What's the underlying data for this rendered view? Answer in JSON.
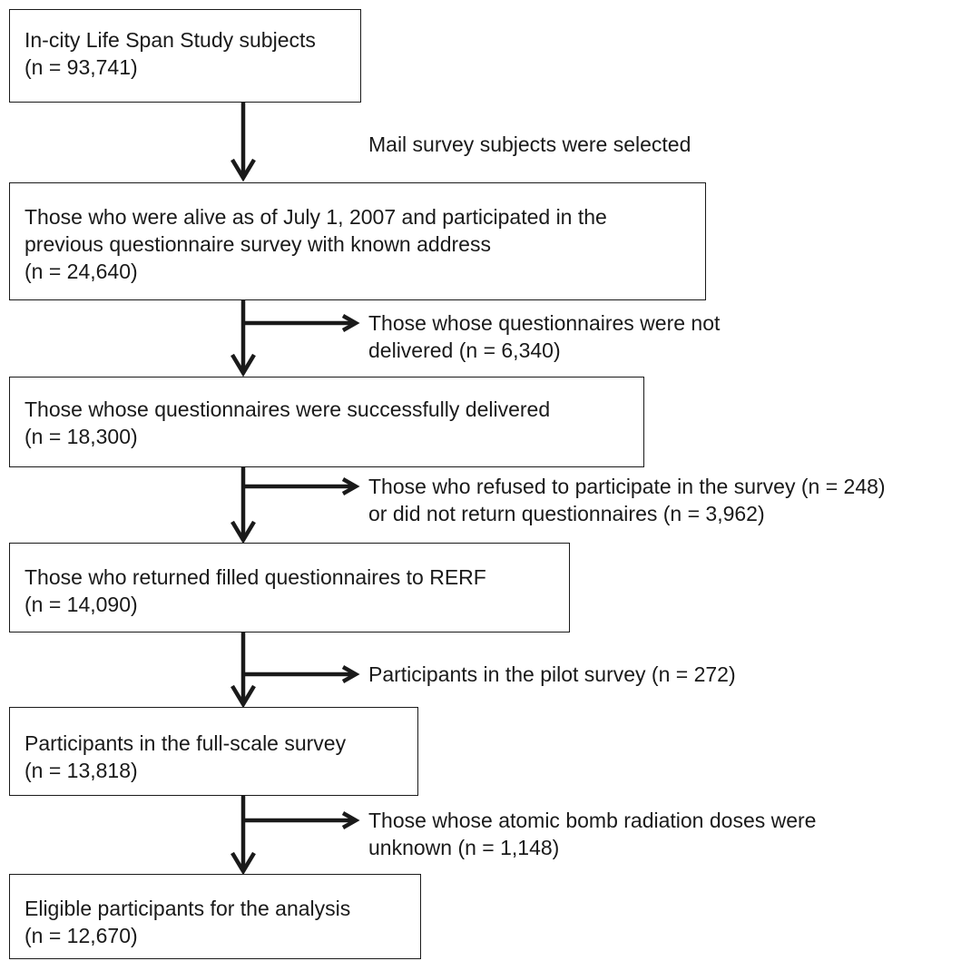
{
  "boxes": [
    {
      "lines": [
        "In-city Life Span Study subjects",
        "(n = 93,741)"
      ]
    },
    {
      "lines": [
        "Those who were alive as of July 1, 2007 and participated in the",
        "previous questionnaire survey with known address",
        "(n = 24,640)"
      ]
    },
    {
      "lines": [
        "Those whose questionnaires were successfully delivered",
        "(n = 18,300)"
      ]
    },
    {
      "lines": [
        "Those who returned filled questionnaires to RERF",
        "(n = 14,090)"
      ]
    },
    {
      "lines": [
        "Participants in the full-scale survey",
        "(n = 13,818)"
      ]
    },
    {
      "lines": [
        "Eligible participants for the analysis",
        "(n = 12,670)"
      ]
    }
  ],
  "notes": [
    {
      "lines": [
        "Mail survey subjects were selected"
      ]
    },
    {
      "lines": [
        "Those whose questionnaires were not",
        "delivered (n = 6,340)"
      ]
    },
    {
      "lines": [
        "Those who refused to participate in the survey (n = 248)",
        "or did not return questionnaires (n = 3,962)"
      ]
    },
    {
      "lines": [
        "Participants in the pilot survey (n = 272)"
      ]
    },
    {
      "lines": [
        "Those whose atomic bomb radiation doses were",
        "unknown (n = 1,148)"
      ]
    }
  ]
}
